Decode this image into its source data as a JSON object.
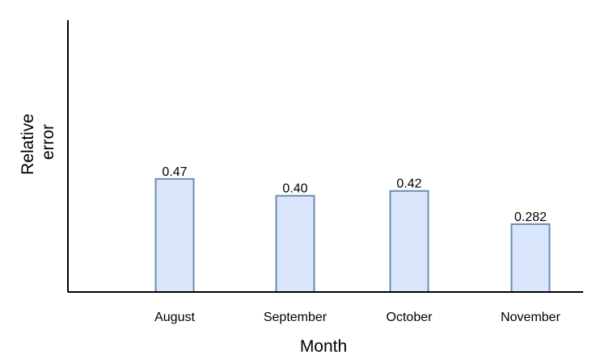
{
  "chart_data": {
    "type": "bar",
    "categories": [
      "August",
      "September",
      "October",
      "November"
    ],
    "values": [
      0.47,
      0.4,
      0.42,
      0.282
    ],
    "value_labels": [
      "0.47",
      "0.40",
      "0.42",
      "0.282"
    ],
    "xlabel": "Month",
    "ylabel_lines": [
      "Relative",
      "error"
    ],
    "ylim": [
      0,
      1.13
    ],
    "grid": false,
    "bar_fill": "#dae6fb",
    "bar_stroke": "#6d8bb4",
    "axis_color": "#000000"
  }
}
